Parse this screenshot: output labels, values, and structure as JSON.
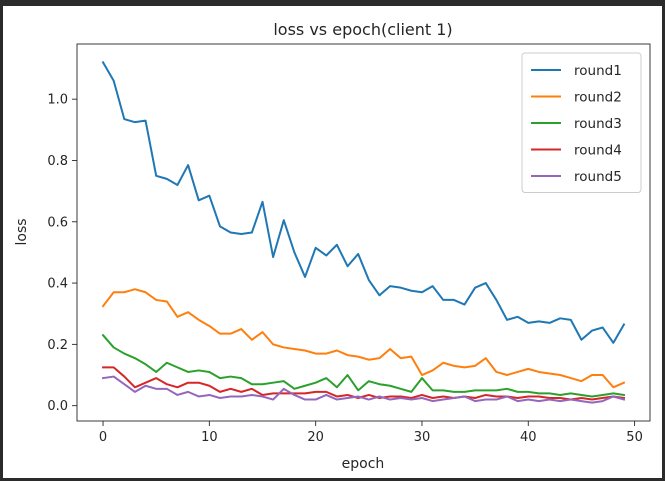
{
  "chart_data": {
    "type": "line",
    "title": "loss vs epoch(client 1)",
    "xlabel": "epoch",
    "ylabel": "loss",
    "xlim": [
      -2.45,
      51.45
    ],
    "ylim": [
      -0.05,
      1.18
    ],
    "xticks": [
      0,
      10,
      20,
      30,
      40,
      50
    ],
    "yticks": [
      0.0,
      0.2,
      0.4,
      0.6,
      0.8,
      1.0
    ],
    "xtick_labels": [
      "0",
      "10",
      "20",
      "30",
      "40",
      "50"
    ],
    "ytick_labels": [
      "0.0",
      "0.2",
      "0.4",
      "0.6",
      "0.8",
      "1.0"
    ],
    "grid": false,
    "legend": "top-right",
    "x": [
      0,
      1,
      2,
      3,
      4,
      5,
      6,
      7,
      8,
      9,
      10,
      11,
      12,
      13,
      14,
      15,
      16,
      17,
      18,
      19,
      20,
      21,
      22,
      23,
      24,
      25,
      26,
      27,
      28,
      29,
      30,
      31,
      32,
      33,
      34,
      35,
      36,
      37,
      38,
      39,
      40,
      41,
      42,
      43,
      44,
      45,
      46,
      47,
      48,
      49
    ],
    "series": [
      {
        "name": "round1",
        "color": "#1f77b4",
        "values": [
          1.12,
          1.06,
          0.935,
          0.925,
          0.93,
          0.75,
          0.74,
          0.72,
          0.785,
          0.67,
          0.685,
          0.585,
          0.565,
          0.56,
          0.565,
          0.665,
          0.485,
          0.605,
          0.5,
          0.42,
          0.515,
          0.49,
          0.525,
          0.455,
          0.495,
          0.41,
          0.36,
          0.39,
          0.385,
          0.375,
          0.37,
          0.39,
          0.345,
          0.345,
          0.33,
          0.385,
          0.4,
          0.345,
          0.28,
          0.29,
          0.27,
          0.275,
          0.27,
          0.285,
          0.28,
          0.215,
          0.245,
          0.255,
          0.205,
          0.265
        ]
      },
      {
        "name": "round2",
        "color": "#ff7f0e",
        "values": [
          0.325,
          0.37,
          0.37,
          0.38,
          0.37,
          0.345,
          0.34,
          0.29,
          0.305,
          0.28,
          0.26,
          0.235,
          0.235,
          0.25,
          0.215,
          0.24,
          0.2,
          0.19,
          0.185,
          0.18,
          0.17,
          0.17,
          0.18,
          0.165,
          0.16,
          0.15,
          0.155,
          0.185,
          0.155,
          0.16,
          0.1,
          0.115,
          0.14,
          0.13,
          0.125,
          0.13,
          0.155,
          0.11,
          0.1,
          0.11,
          0.12,
          0.11,
          0.105,
          0.1,
          0.09,
          0.08,
          0.1,
          0.1,
          0.06,
          0.075
        ]
      },
      {
        "name": "round3",
        "color": "#2ca02c",
        "values": [
          0.23,
          0.19,
          0.17,
          0.155,
          0.135,
          0.11,
          0.14,
          0.125,
          0.11,
          0.115,
          0.11,
          0.09,
          0.095,
          0.09,
          0.07,
          0.07,
          0.075,
          0.08,
          0.055,
          0.065,
          0.075,
          0.09,
          0.06,
          0.1,
          0.05,
          0.08,
          0.07,
          0.065,
          0.055,
          0.045,
          0.09,
          0.05,
          0.05,
          0.045,
          0.045,
          0.05,
          0.05,
          0.05,
          0.055,
          0.045,
          0.045,
          0.04,
          0.04,
          0.035,
          0.04,
          0.035,
          0.03,
          0.035,
          0.04,
          0.035
        ]
      },
      {
        "name": "round4",
        "color": "#d62728",
        "values": [
          0.125,
          0.125,
          0.095,
          0.06,
          0.075,
          0.09,
          0.07,
          0.06,
          0.075,
          0.075,
          0.065,
          0.045,
          0.055,
          0.045,
          0.055,
          0.035,
          0.04,
          0.04,
          0.04,
          0.04,
          0.045,
          0.045,
          0.03,
          0.035,
          0.025,
          0.035,
          0.025,
          0.03,
          0.03,
          0.025,
          0.035,
          0.025,
          0.03,
          0.025,
          0.03,
          0.025,
          0.035,
          0.03,
          0.03,
          0.025,
          0.03,
          0.03,
          0.025,
          0.025,
          0.02,
          0.025,
          0.02,
          0.025,
          0.03,
          0.025
        ]
      },
      {
        "name": "round5",
        "color": "#9467bd",
        "values": [
          0.09,
          0.095,
          0.07,
          0.045,
          0.065,
          0.055,
          0.055,
          0.035,
          0.045,
          0.03,
          0.035,
          0.025,
          0.03,
          0.03,
          0.035,
          0.03,
          0.02,
          0.055,
          0.035,
          0.02,
          0.02,
          0.035,
          0.02,
          0.025,
          0.03,
          0.02,
          0.03,
          0.02,
          0.025,
          0.02,
          0.025,
          0.015,
          0.02,
          0.025,
          0.03,
          0.015,
          0.02,
          0.02,
          0.03,
          0.015,
          0.02,
          0.015,
          0.02,
          0.015,
          0.02,
          0.015,
          0.01,
          0.015,
          0.03,
          0.02
        ]
      }
    ]
  }
}
